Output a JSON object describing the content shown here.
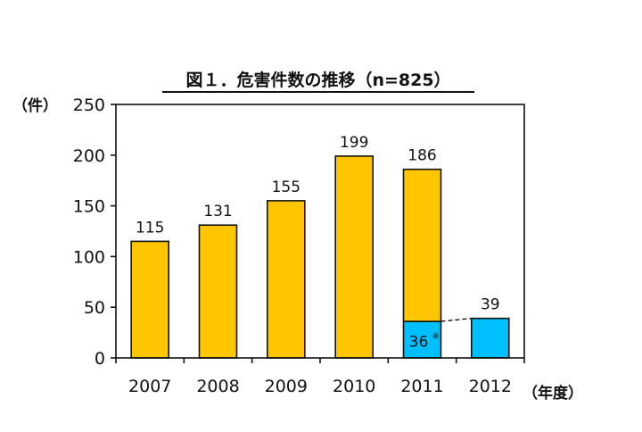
{
  "chart_data": {
    "type": "bar",
    "title": "図１．危害件数の推移（n=825）",
    "y_unit": "（件）",
    "x_unit": "（年度）",
    "categories": [
      "2007",
      "2008",
      "2009",
      "2010",
      "2011",
      "2012"
    ],
    "ylim": [
      0,
      250
    ],
    "yticks": [
      0,
      50,
      100,
      150,
      200,
      250
    ],
    "series": [
      {
        "values": [
          115,
          131,
          155,
          199,
          150,
          0
        ],
        "color": "#FFC600"
      },
      {
        "values": [
          0,
          0,
          0,
          0,
          36,
          39
        ],
        "color": "#00BFFF"
      }
    ],
    "total_labels": [
      "115",
      "131",
      "155",
      "199",
      "186",
      "39"
    ],
    "inner_labels": [
      {
        "category": "2011",
        "text": "36",
        "mark": "※"
      }
    ],
    "connector": {
      "from": "2011",
      "to": "2012",
      "style": "dashed"
    },
    "grid": false,
    "legend": "none"
  }
}
